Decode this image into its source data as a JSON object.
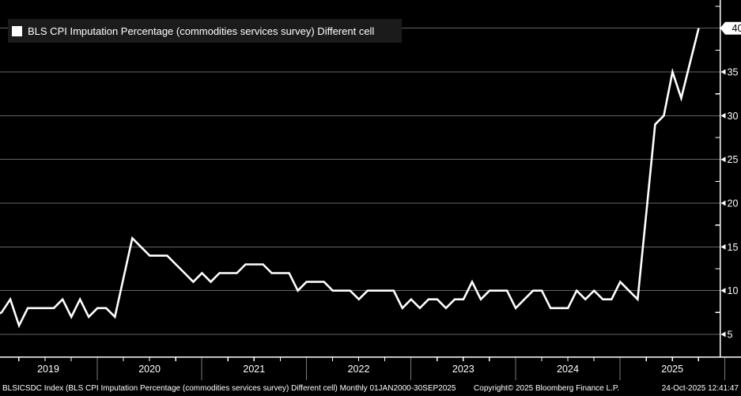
{
  "legend": {
    "swatch_icon": "white-square-swatch",
    "label": "BLS CPI Imputation Percentage (commodities services survey) Different cell"
  },
  "y_axis": {
    "ticks": [
      5,
      10,
      15,
      20,
      25,
      30,
      35,
      40
    ],
    "minor_tick_step": 2.5,
    "last_value_tag": "40",
    "side": "right"
  },
  "x_axis": {
    "year_labels": [
      "2019",
      "2020",
      "2021",
      "2022",
      "2023",
      "2024",
      "2025"
    ],
    "minor_ticks": "quarterly"
  },
  "footer": {
    "left": "BLSICSDC Index (BLS CPI Imputation Percentage (commodities services survey) Different cell) Monthly 01JAN2000-30SEP2025",
    "copyright": "Copyright© 2025 Bloomberg Finance L.P.",
    "timestamp": "24-Oct-2025 12:41:47"
  },
  "colors": {
    "background": "#000000",
    "series": "#ffffff",
    "grid": "#666666",
    "axis": "#ffffff",
    "year_separator": "#7a7a7a",
    "text": "#ffffff",
    "legend_bg": "#1b1b1b",
    "tag_bg": "#ffffff",
    "tag_text": "#000000"
  },
  "chart_data": {
    "type": "line",
    "title": "BLS CPI Imputation Percentage (commodities services survey) Different cell",
    "frequency": "monthly",
    "x_start": "2018-12",
    "x_end": "2025-09",
    "visible_years": [
      2019,
      2020,
      2021,
      2022,
      2023,
      2024,
      2025
    ],
    "ylim": [
      2.5,
      43.2
    ],
    "ytick_step": 5,
    "grid": true,
    "legend_position": "top-left",
    "last_value": 40,
    "series": [
      {
        "name": "BLS CPI Imputation Percentage (commodities services survey) Different cell",
        "ticker": "BLSICSDC Index",
        "color": "#ffffff",
        "values": [
          7,
          7.5,
          9,
          6,
          8,
          8,
          8,
          8,
          9,
          7,
          9,
          7,
          8,
          8,
          7,
          11.5,
          16,
          15,
          14,
          14,
          14,
          13,
          12,
          11,
          12,
          11,
          12,
          12,
          12,
          13,
          13,
          13,
          12,
          12,
          12,
          10,
          11,
          11,
          11,
          10,
          10,
          10,
          9,
          10,
          10,
          10,
          10,
          8,
          9,
          8,
          9,
          9,
          8,
          9,
          9,
          11,
          9,
          10,
          10,
          10,
          8,
          9,
          10,
          10,
          8,
          8,
          8,
          10,
          9,
          10,
          9,
          9,
          11,
          10,
          9,
          19,
          29,
          30,
          35,
          32,
          36,
          40
        ]
      }
    ]
  }
}
